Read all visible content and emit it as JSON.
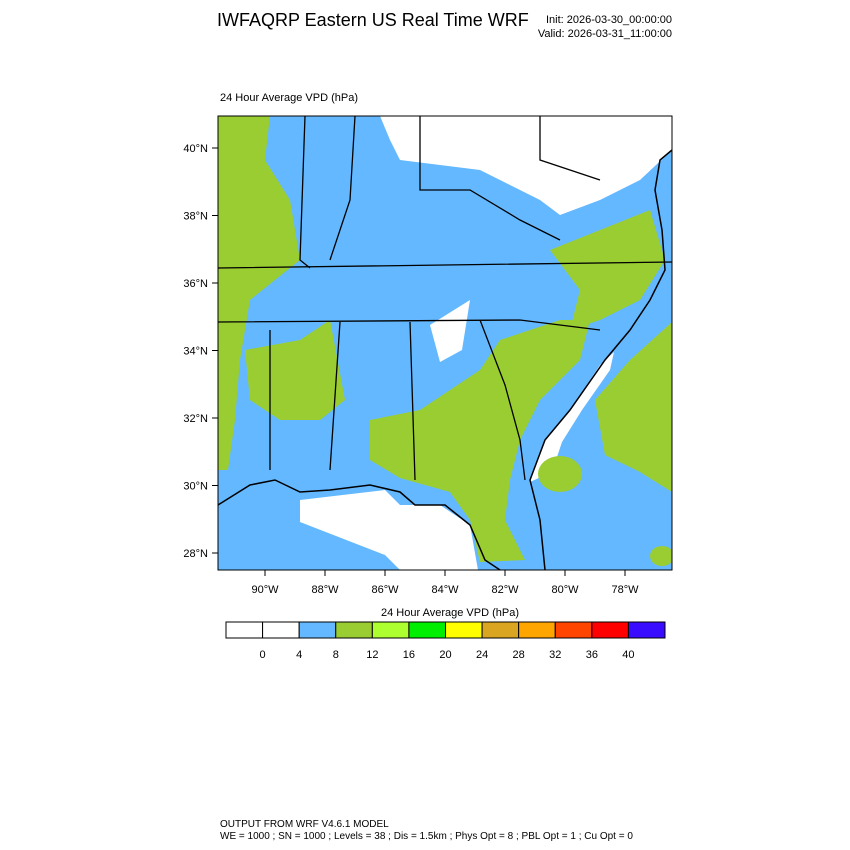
{
  "header": {
    "title": "IWFAQRP Eastern US Real Time WRF",
    "init": "Init: 2026-03-30_00:00:00",
    "valid": "Valid: 2026-03-31_11:00:00"
  },
  "map": {
    "label": "24 Hour Average VPD   (hPa)",
    "lat_labels": [
      "40°N",
      "38°N",
      "36°N",
      "34°N",
      "32°N",
      "30°N",
      "28°N"
    ],
    "lon_labels": [
      "90°W",
      "88°W",
      "86°W",
      "84°W",
      "82°W",
      "80°W",
      "78°W"
    ]
  },
  "colorbar": {
    "title": "24 Hour Average VPD  (hPa)",
    "levels": [
      0,
      4,
      8,
      12,
      16,
      20,
      24,
      28,
      32,
      36,
      40
    ],
    "colors": [
      "#ffffff",
      "#ffffff",
      "#63b8ff",
      "#9acd32",
      "#adff2f",
      "#00ee00",
      "#ffff00",
      "#daa520",
      "#ffa500",
      "#ff4500",
      "#ff0000",
      "#3a0cff"
    ]
  },
  "footer": {
    "line1": "OUTPUT FROM WRF V4.6.1 MODEL",
    "line2": "WE = 1000 ; SN = 1000 ; Levels = 38 ; Dis = 1.5km ; Phys Opt = 8 ; PBL Opt = 1 ; Cu Opt = 0"
  }
}
